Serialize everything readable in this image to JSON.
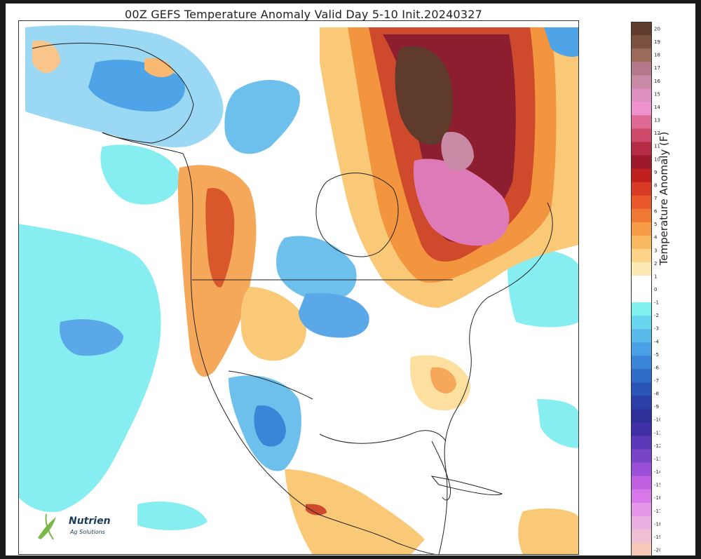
{
  "title": "00Z GEFS Temperature Anomaly Valid Day 5-10 Init.20240327",
  "colorbar": {
    "label": "Temperature Anomaly (F)",
    "ticks": [
      "20",
      "19",
      "18",
      "17",
      "16",
      "15",
      "14",
      "13",
      "12",
      "11",
      "10",
      "9",
      "8",
      "7",
      "6",
      "5",
      "4",
      "3",
      "2",
      "1",
      "0",
      "-1",
      "-2",
      "-3",
      "-4",
      "-5",
      "-6",
      "-7",
      "-8",
      "-9",
      "-10",
      "-11",
      "-12",
      "-13",
      "-14",
      "-15",
      "-16",
      "-17",
      "-18",
      "-19",
      "-20"
    ],
    "colors": [
      "#5e3b2a",
      "#7a5040",
      "#9a6a5a",
      "#b5788a",
      "#c98aa6",
      "#de8fc2",
      "#ee93cc",
      "#e06a96",
      "#cf4a6a",
      "#b52a45",
      "#9c1a2c",
      "#c0201e",
      "#d83a24",
      "#e8582a",
      "#f07a35",
      "#f59a45",
      "#f8b860",
      "#fbd48a",
      "#fde9b4",
      "#ffffff",
      "#ffffff",
      "#7ff0ee",
      "#68d6ee",
      "#5abaec",
      "#4aa0e4",
      "#3b85d8",
      "#2f6cc8",
      "#2a55b8",
      "#2a3ea8",
      "#2e2f98",
      "#4030a8",
      "#5a3ab8",
      "#7a44c8",
      "#9a50d8",
      "#c060e0",
      "#d878e8",
      "#e496e8",
      "#eab0e2",
      "#efc0d4",
      "#f6c8b8"
    ]
  },
  "logo": {
    "name": "Nutrien",
    "sub": "Ag Solutions"
  },
  "palette": {
    "ocean": "#ffffff",
    "cyan": "#86eef0",
    "blue": "#4ea4e6",
    "dark_blue": "#2e6cc8",
    "pale_yellow": "#fde9b4",
    "yellow": "#f9c978",
    "orange": "#f2953e",
    "red": "#cf4a2c",
    "maroon": "#8c1e30",
    "pink": "#de7ab8",
    "brown": "#5e3b2a"
  }
}
